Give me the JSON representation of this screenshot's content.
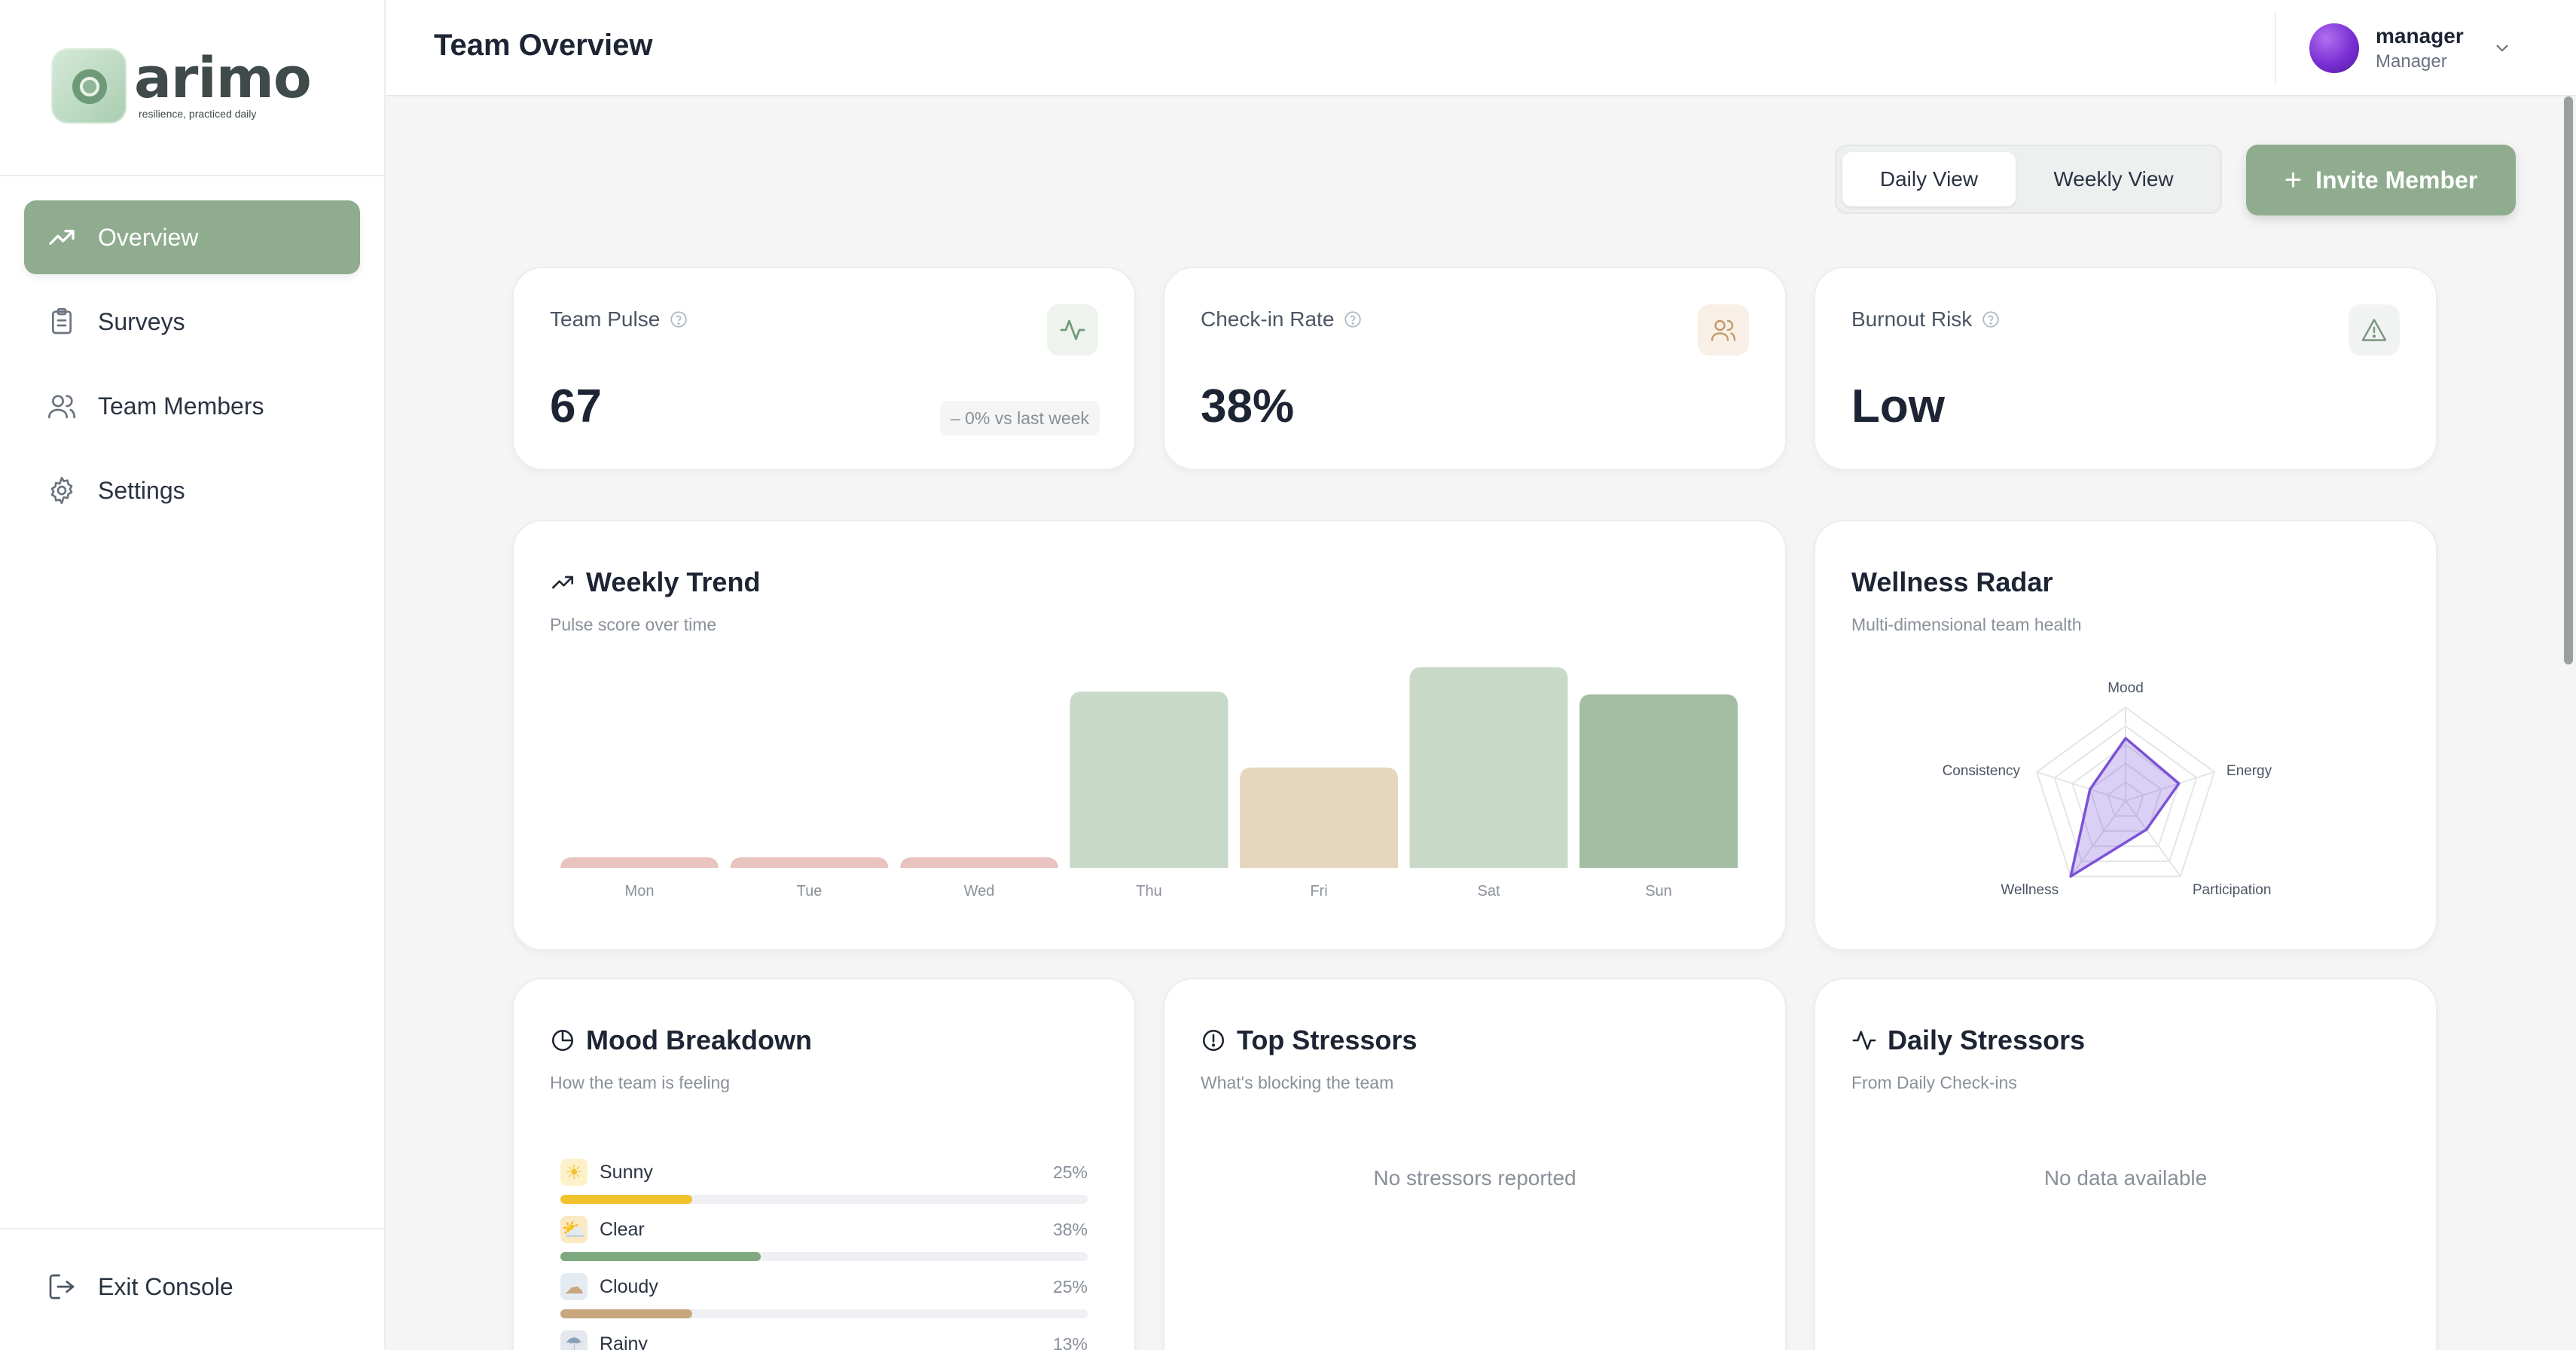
{
  "brand": {
    "name": "arimo",
    "tagline": "resilience, practiced daily"
  },
  "sidebar": {
    "items": [
      {
        "label": "Overview",
        "icon": "trending-up-icon",
        "active": true
      },
      {
        "label": "Surveys",
        "icon": "clipboard-icon",
        "active": false
      },
      {
        "label": "Team Members",
        "icon": "users-icon",
        "active": false
      },
      {
        "label": "Settings",
        "icon": "gear-icon",
        "active": false
      }
    ],
    "exit_label": "Exit Console"
  },
  "header": {
    "title": "Team Overview",
    "user": {
      "name": "manager",
      "role": "Manager"
    }
  },
  "toolbar": {
    "daily_label": "Daily View",
    "weekly_label": "Weekly View",
    "active_view": "Daily View",
    "invite_label": "Invite Member"
  },
  "stats": {
    "team_pulse": {
      "label": "Team Pulse",
      "value": "67",
      "compare": "– 0% vs last week",
      "icon": "activity-icon"
    },
    "checkin_rate": {
      "label": "Check-in Rate",
      "value": "38%",
      "icon": "users-icon"
    },
    "burnout_risk": {
      "label": "Burnout Risk",
      "value": "Low",
      "icon": "warning-triangle-icon"
    }
  },
  "weekly_trend": {
    "title": "Weekly Trend",
    "subtitle": "Pulse score over time",
    "chart_data": {
      "type": "bar",
      "categories": [
        "Mon",
        "Tue",
        "Wed",
        "Thu",
        "Fri",
        "Sat",
        "Sun"
      ],
      "values": [
        2,
        2,
        2,
        65,
        37,
        74,
        64
      ],
      "ylim": [
        0,
        75
      ],
      "bar_colors": [
        "#e8c3bf",
        "#e8c3bf",
        "#e8c3bf",
        "#c9d9c7",
        "#e6d6bd",
        "#c9d9c7",
        "#a3bda3"
      ]
    }
  },
  "wellness_radar": {
    "title": "Wellness Radar",
    "subtitle": "Multi-dimensional team health",
    "chart_data": {
      "type": "radar",
      "axes": [
        "Mood",
        "Energy",
        "Participation",
        "Wellness",
        "Consistency"
      ],
      "values": [
        0.67,
        0.6,
        0.38,
        1.0,
        0.4
      ],
      "range": [
        0,
        1
      ],
      "color": "#7b52d6"
    }
  },
  "mood_breakdown": {
    "title": "Mood Breakdown",
    "subtitle": "How the team is feeling",
    "items": [
      {
        "label": "Sunny",
        "pct": "25%",
        "value": 25,
        "color": "#f2c12e",
        "emoji": "☀"
      },
      {
        "label": "Clear",
        "pct": "38%",
        "value": 38,
        "color": "#7ea87e",
        "emoji": "⛅"
      },
      {
        "label": "Cloudy",
        "pct": "25%",
        "value": 25,
        "color": "#c9a77e",
        "emoji": "☁"
      },
      {
        "label": "Rainy",
        "pct": "13%",
        "value": 13,
        "color": "#8aa0b8",
        "emoji": "☂"
      }
    ]
  },
  "top_stressors": {
    "title": "Top Stressors",
    "subtitle": "What's blocking the team",
    "empty": "No stressors reported"
  },
  "daily_stressors": {
    "title": "Daily Stressors",
    "subtitle": "From Daily Check-ins",
    "empty": "No data available"
  }
}
